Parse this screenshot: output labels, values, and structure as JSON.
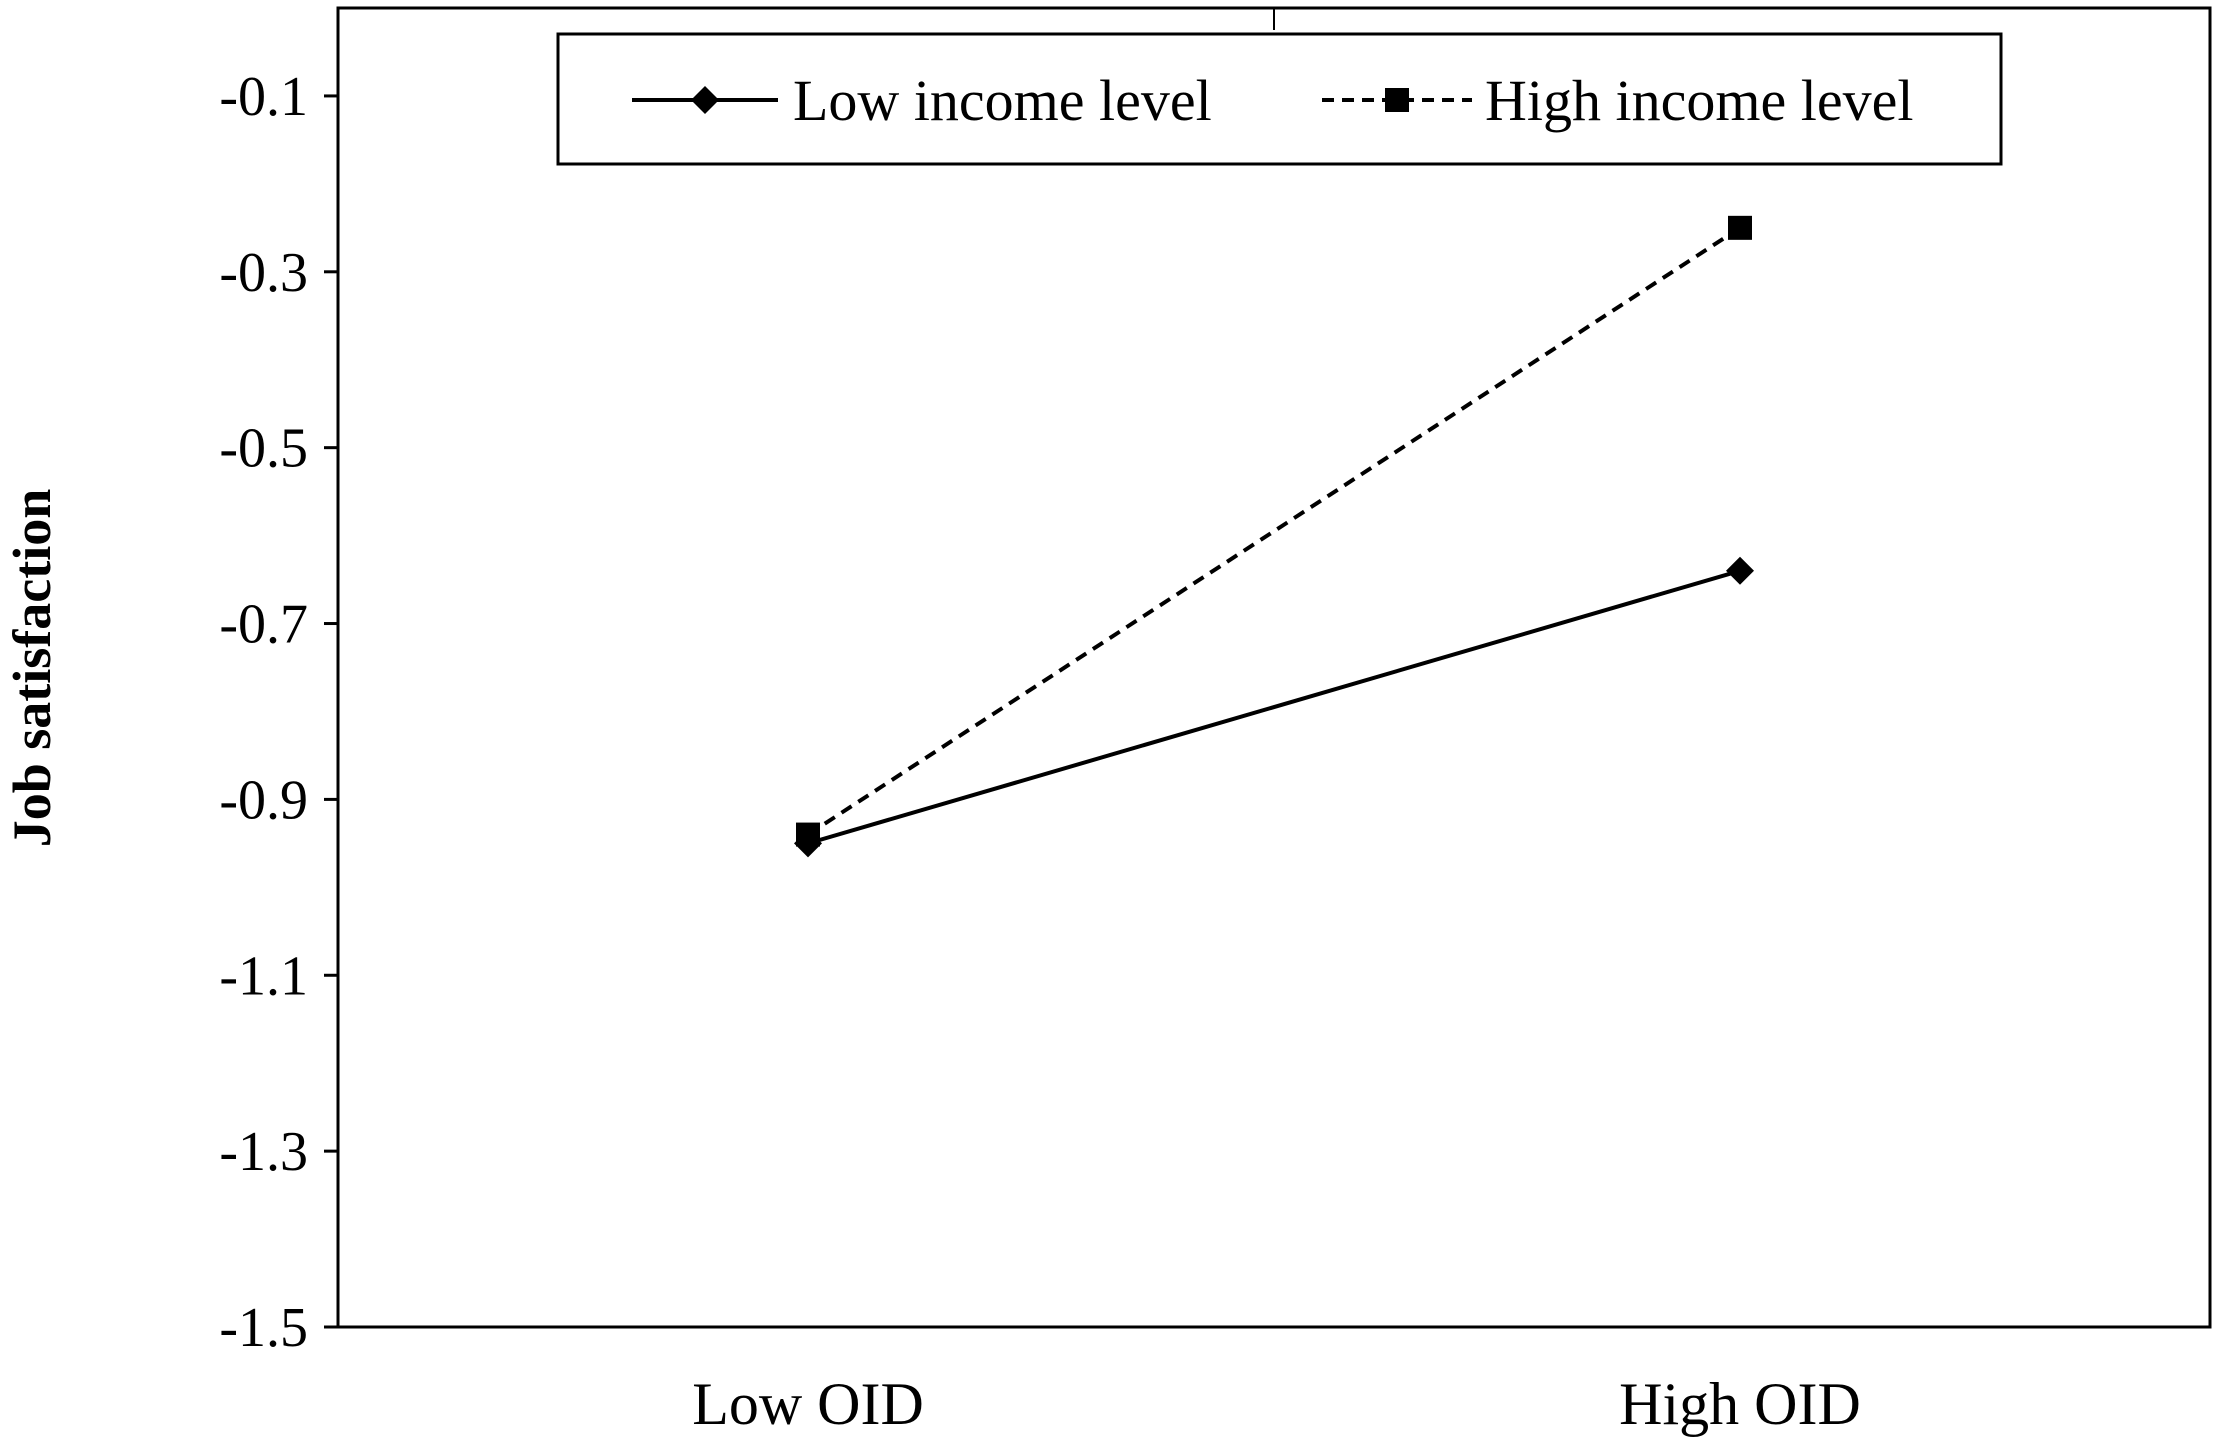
{
  "chart_data": {
    "type": "line",
    "title": "",
    "xlabel": "",
    "ylabel": "Job satisfaction",
    "categories": [
      "Low OID",
      "High OID"
    ],
    "ylim": [
      -1.5,
      0
    ],
    "yticks": [
      -0.1,
      -0.3,
      -0.5,
      -0.7,
      -0.9,
      -1.1,
      -1.3,
      -1.5
    ],
    "ytick_labels": [
      "-0.1",
      "-0.3",
      "-0.5",
      "-0.7",
      "-0.9",
      "-1.1",
      "-1.3",
      "-1.5"
    ],
    "grid": false,
    "legend_placement": "top-center",
    "series": [
      {
        "name": "Low income level",
        "values": [
          -0.95,
          -0.64
        ],
        "marker": "diamond",
        "line_style": "solid",
        "color": "#000000"
      },
      {
        "name": "High income level",
        "values": [
          -0.94,
          -0.25
        ],
        "marker": "square",
        "line_style": "dashed",
        "color": "#000000"
      }
    ]
  }
}
